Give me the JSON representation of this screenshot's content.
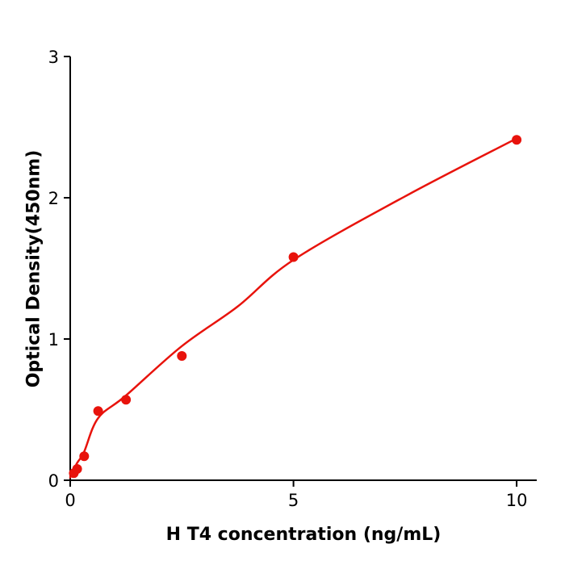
{
  "figure": {
    "background": "#ffffff",
    "axis_color": "#000000"
  },
  "chart_data": {
    "type": "scatter",
    "title": "",
    "xlabel": "H  T4 concentration (ng/mL)",
    "ylabel": "Optical Density(450nm)",
    "xlim": [
      0,
      10.45
    ],
    "ylim": [
      0,
      3
    ],
    "x_ticks": [
      0,
      5,
      10
    ],
    "y_ticks": [
      0,
      1,
      2,
      3
    ],
    "grid": false,
    "legend": "none",
    "series": [
      {
        "name": "fit-curve",
        "type": "line",
        "color": "#e8130c",
        "x": [
          0,
          0.15,
          0.31,
          0.625,
          1.25,
          2.5,
          3.75,
          5,
          7.5,
          10
        ],
        "y": [
          0.02,
          0.12,
          0.2,
          0.44,
          0.6,
          0.95,
          1.23,
          1.56,
          2.01,
          2.42
        ]
      },
      {
        "name": "standard-points",
        "type": "scatter",
        "color": "#e8130c",
        "x": [
          0.08,
          0.156,
          0.3125,
          0.625,
          1.25,
          2.5,
          5,
          10
        ],
        "y": [
          0.05,
          0.08,
          0.17,
          0.49,
          0.57,
          0.88,
          1.58,
          2.41
        ]
      }
    ]
  }
}
